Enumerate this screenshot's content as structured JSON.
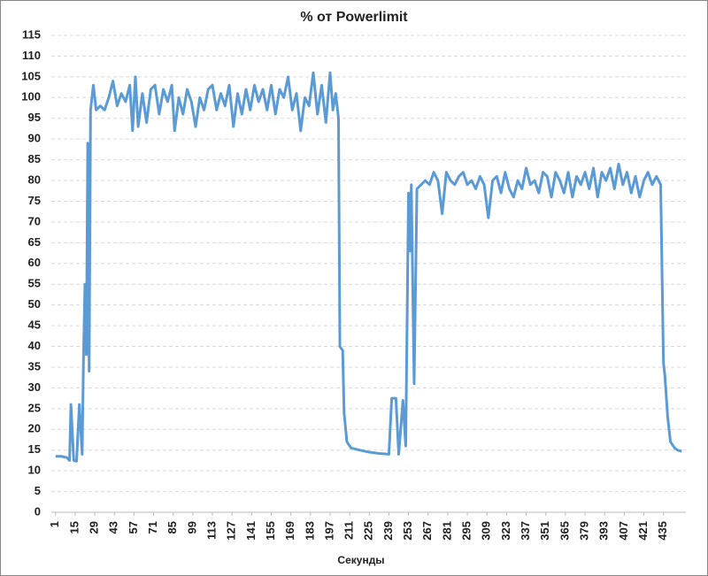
{
  "chart_data": {
    "type": "line",
    "title": "% от Powerlimit",
    "x_label": "Секунды",
    "color": "#5b9bd5",
    "grid": true,
    "xlim": [
      -2,
      451
    ],
    "xticks": [
      1,
      15,
      29,
      43,
      57,
      71,
      85,
      99,
      113,
      127,
      141,
      155,
      169,
      183,
      197,
      211,
      225,
      239,
      253,
      267,
      281,
      295,
      309,
      323,
      337,
      351,
      365,
      379,
      393,
      407,
      421,
      435
    ],
    "ylim": [
      0,
      115
    ],
    "yticks": [
      0,
      5,
      10,
      15,
      20,
      25,
      30,
      35,
      40,
      45,
      50,
      55,
      60,
      65,
      70,
      75,
      80,
      85,
      90,
      95,
      100,
      105,
      110,
      115
    ],
    "x": [
      1,
      5,
      9,
      11,
      12,
      14,
      16,
      18,
      20,
      21,
      22,
      23,
      24,
      25,
      26,
      28,
      30,
      33,
      36,
      39,
      42,
      45,
      48,
      51,
      54,
      56,
      58,
      60,
      63,
      66,
      69,
      72,
      75,
      78,
      81,
      84,
      86,
      89,
      92,
      95,
      98,
      101,
      104,
      107,
      110,
      113,
      116,
      119,
      122,
      125,
      128,
      131,
      134,
      137,
      140,
      143,
      146,
      149,
      152,
      155,
      158,
      161,
      164,
      167,
      170,
      173,
      176,
      179,
      182,
      185,
      188,
      191,
      194,
      197,
      199,
      201,
      203,
      204,
      206,
      207,
      209,
      212,
      218,
      225,
      232,
      239,
      241,
      244,
      246,
      249,
      251,
      253,
      254,
      255,
      257,
      259,
      262,
      265,
      268,
      271,
      274,
      277,
      280,
      283,
      286,
      289,
      292,
      295,
      298,
      301,
      304,
      307,
      310,
      313,
      316,
      319,
      322,
      325,
      328,
      331,
      334,
      337,
      340,
      343,
      346,
      349,
      352,
      355,
      358,
      361,
      364,
      367,
      370,
      373,
      376,
      379,
      382,
      385,
      388,
      391,
      394,
      397,
      400,
      403,
      406,
      409,
      412,
      415,
      418,
      421,
      424,
      427,
      430,
      433,
      435,
      436,
      438,
      440,
      443,
      445,
      448
    ],
    "values": [
      13.5,
      13.5,
      13.2,
      12.5,
      26,
      12.5,
      12.3,
      26,
      14,
      38,
      55,
      38,
      89,
      34,
      97,
      103,
      97,
      98,
      97,
      100,
      104,
      98,
      101,
      99,
      103,
      92,
      105,
      93,
      101,
      94,
      102,
      103,
      96,
      102,
      99,
      103,
      92,
      100,
      96,
      102,
      99,
      93,
      100,
      97,
      102,
      103,
      97,
      101,
      98,
      103,
      93,
      101,
      96,
      102,
      97,
      103,
      99,
      102,
      97,
      103,
      96,
      102,
      100,
      105,
      97,
      101,
      92,
      100,
      98,
      106,
      96,
      103,
      94,
      106,
      97,
      101,
      95,
      40,
      39,
      24,
      17,
      15.5,
      15,
      14.5,
      14.2,
      14,
      27.5,
      27.5,
      14,
      27,
      16,
      77,
      63,
      79,
      31,
      78,
      79,
      80,
      79,
      82,
      80,
      72,
      82,
      80,
      79,
      81,
      82,
      79,
      80,
      78,
      81,
      79,
      71,
      80,
      81,
      77,
      82,
      78,
      76,
      80,
      78,
      83,
      79,
      80,
      77,
      82,
      81,
      76,
      82,
      80,
      77,
      82,
      76,
      81,
      79,
      82,
      78,
      83,
      76,
      82,
      80,
      83,
      78,
      84,
      79,
      82,
      77,
      81,
      76,
      80,
      82,
      79,
      81,
      79,
      36,
      33,
      23,
      17,
      15.5,
      15,
      14.7
    ]
  }
}
